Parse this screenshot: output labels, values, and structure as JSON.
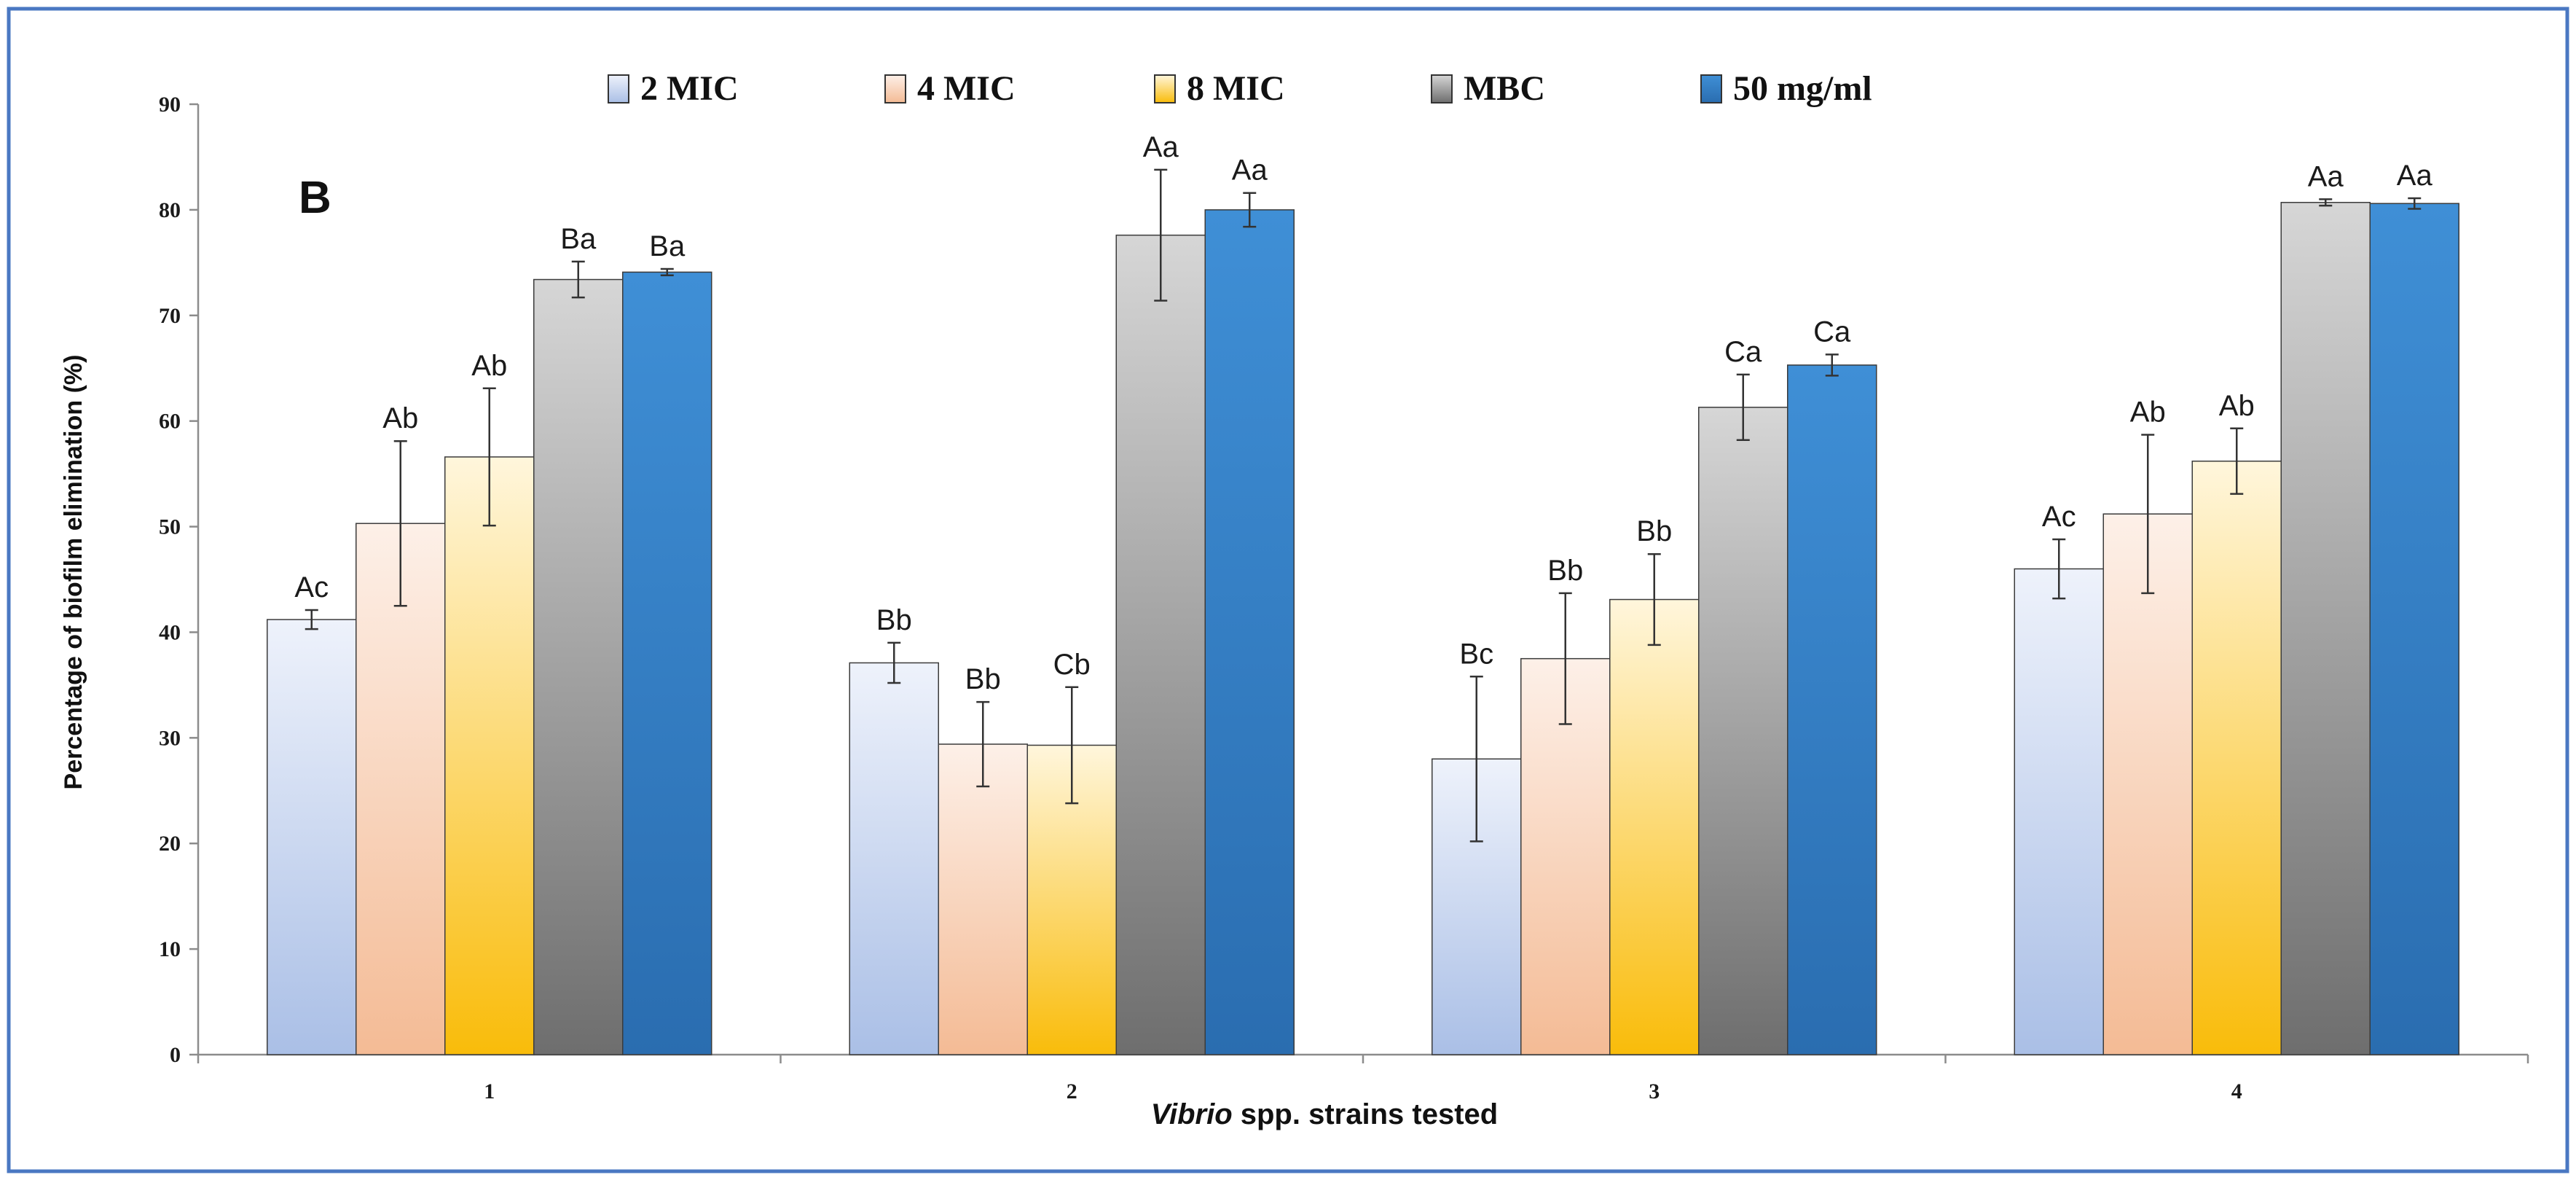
{
  "chart_data": {
    "type": "bar",
    "panel_label": "B",
    "xlabel_italic": "Vibrio",
    "xlabel_rest": " spp. strains tested",
    "ylabel": "Percentage of biofilm elimination (%)",
    "ylim": [
      0,
      90
    ],
    "yticks": [
      "0",
      "10",
      "20",
      "30",
      "40",
      "50",
      "60",
      "70",
      "80",
      "90"
    ],
    "categories": [
      "1",
      "2",
      "3",
      "4"
    ],
    "legend_position": "top",
    "series": [
      {
        "name": "2 MIC",
        "colors": [
          "#aabfe6",
          "#eef2fb"
        ],
        "values": [
          41.2,
          37.1,
          28.0,
          46.0
        ],
        "errors": [
          0.9,
          1.9,
          7.8,
          2.8
        ],
        "labels": [
          "Ac",
          "Bb",
          "Bc",
          "Ac"
        ]
      },
      {
        "name": "4 MIC",
        "colors": [
          "#f4bb95",
          "#fdf0e8"
        ],
        "values": [
          50.3,
          29.4,
          37.5,
          51.2
        ],
        "errors": [
          7.8,
          4.0,
          6.2,
          7.5
        ],
        "labels": [
          "Ab",
          "Bb",
          "Bb",
          "Ab"
        ]
      },
      {
        "name": "8 MIC",
        "colors": [
          "#f9bc0a",
          "#fff6dc"
        ],
        "values": [
          56.6,
          29.3,
          43.1,
          56.2
        ],
        "errors": [
          6.5,
          5.5,
          4.3,
          3.1
        ],
        "labels": [
          "Ab",
          "Cb",
          "Bb",
          "Ab"
        ]
      },
      {
        "name": "MBC",
        "colors": [
          "#6e6e6e",
          "#d6d6d6"
        ],
        "values": [
          73.4,
          77.6,
          61.3,
          80.7
        ],
        "errors": [
          1.7,
          6.2,
          3.1,
          0.3
        ],
        "labels": [
          "Ba",
          "Aa",
          "Ca",
          "Aa"
        ]
      },
      {
        "name": "50 mg/ml",
        "colors": [
          "#2a6db0",
          "#3f8fd6"
        ],
        "values": [
          74.1,
          80.0,
          65.3,
          80.6
        ],
        "errors": [
          0.3,
          1.6,
          1.0,
          0.5
        ],
        "labels": [
          "Ba",
          "Aa",
          "Ca",
          "Aa"
        ]
      }
    ]
  }
}
